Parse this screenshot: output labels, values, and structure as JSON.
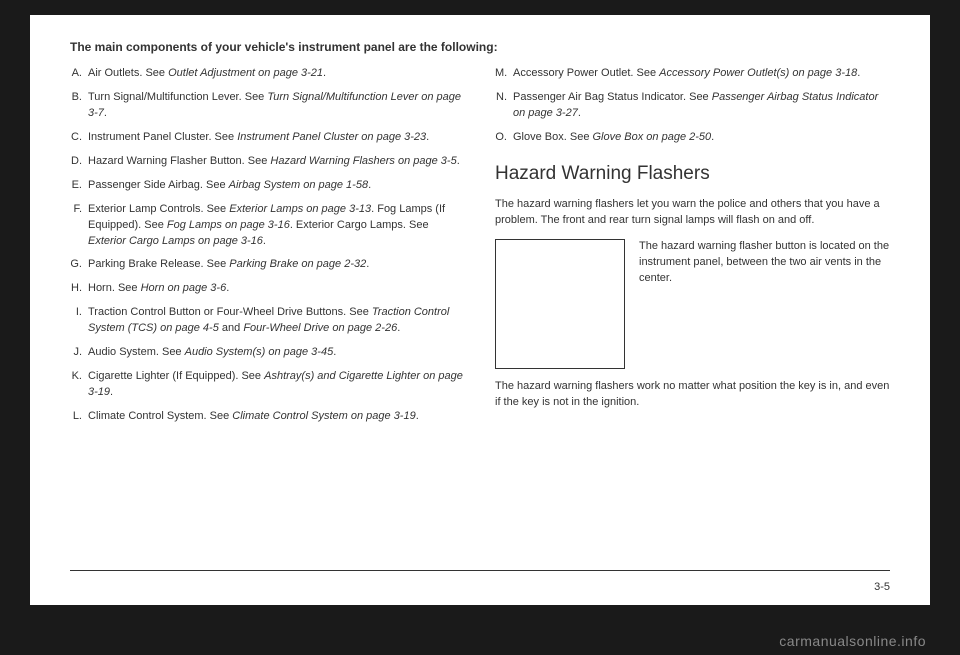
{
  "intro": "The main components of your vehicle's instrument panel are the following:",
  "leftItems": [
    {
      "letter": "A.",
      "plain": "Air Outlets. See ",
      "ital": "Outlet Adjustment on page 3-21",
      "tail": "."
    },
    {
      "letter": "B.",
      "plain": "Turn Signal/Multifunction Lever. See ",
      "ital": "Turn Signal/Multifunction Lever on page 3-7",
      "tail": "."
    },
    {
      "letter": "C.",
      "plain": "Instrument Panel Cluster. See ",
      "ital": "Instrument Panel Cluster on page 3-23",
      "tail": "."
    },
    {
      "letter": "D.",
      "plain": "Hazard Warning Flasher Button. See ",
      "ital": "Hazard Warning Flashers on page 3-5",
      "tail": "."
    },
    {
      "letter": "E.",
      "plain": "Passenger Side Airbag. See ",
      "ital": "Airbag System on page 1-58",
      "tail": "."
    },
    {
      "letter": "F.",
      "plain": "Exterior Lamp Controls. See ",
      "ital": "Exterior Lamps on page 3-13",
      "tail": ". Fog Lamps (If Equipped). See ",
      "ital2": "Fog Lamps on page 3-16",
      "tail2": ". Exterior Cargo Lamps. See ",
      "ital3": "Exterior Cargo Lamps on page 3-16",
      "tail3": "."
    },
    {
      "letter": "G.",
      "plain": "Parking Brake Release. See ",
      "ital": "Parking Brake on page 2-32",
      "tail": "."
    },
    {
      "letter": "H.",
      "plain": "Horn. See ",
      "ital": "Horn on page 3-6",
      "tail": "."
    },
    {
      "letter": "I.",
      "plain": "Traction Control Button or Four-Wheel Drive Buttons. See ",
      "ital": "Traction Control System (TCS) on page 4-5",
      "tail": " and ",
      "ital2": "Four-Wheel Drive on page 2-26",
      "tail2": "."
    },
    {
      "letter": "J.",
      "plain": "Audio System. See ",
      "ital": "Audio System(s) on page 3-45",
      "tail": "."
    },
    {
      "letter": "K.",
      "plain": "Cigarette Lighter (If Equipped). See ",
      "ital": "Ashtray(s) and Cigarette Lighter on page 3-19",
      "tail": "."
    },
    {
      "letter": "L.",
      "plain": "Climate Control System. See ",
      "ital": "Climate Control System on page 3-19",
      "tail": "."
    }
  ],
  "rightItems": [
    {
      "letter": "M.",
      "plain": "Accessory Power Outlet. See ",
      "ital": "Accessory Power Outlet(s) on page 3-18",
      "tail": "."
    },
    {
      "letter": "N.",
      "plain": "Passenger Air Bag Status Indicator. See ",
      "ital": "Passenger Airbag Status Indicator on page 3-27",
      "tail": "."
    },
    {
      "letter": "O.",
      "plain": "Glove Box. See ",
      "ital": "Glove Box on page 2-50",
      "tail": "."
    }
  ],
  "sectionTitle": "Hazard Warning Flashers",
  "para1": "The hazard warning flashers let you warn the police and others that you have a problem. The front and rear turn signal lamps will flash on and off.",
  "figureText": "The hazard warning flasher button is located on the instrument panel, between the two air vents in the center.",
  "para2": "The hazard warning flashers work no matter what position the key is in, and even if the key is not in the ignition.",
  "pageNum": "3-5",
  "watermark": "carmanualsonline.info"
}
